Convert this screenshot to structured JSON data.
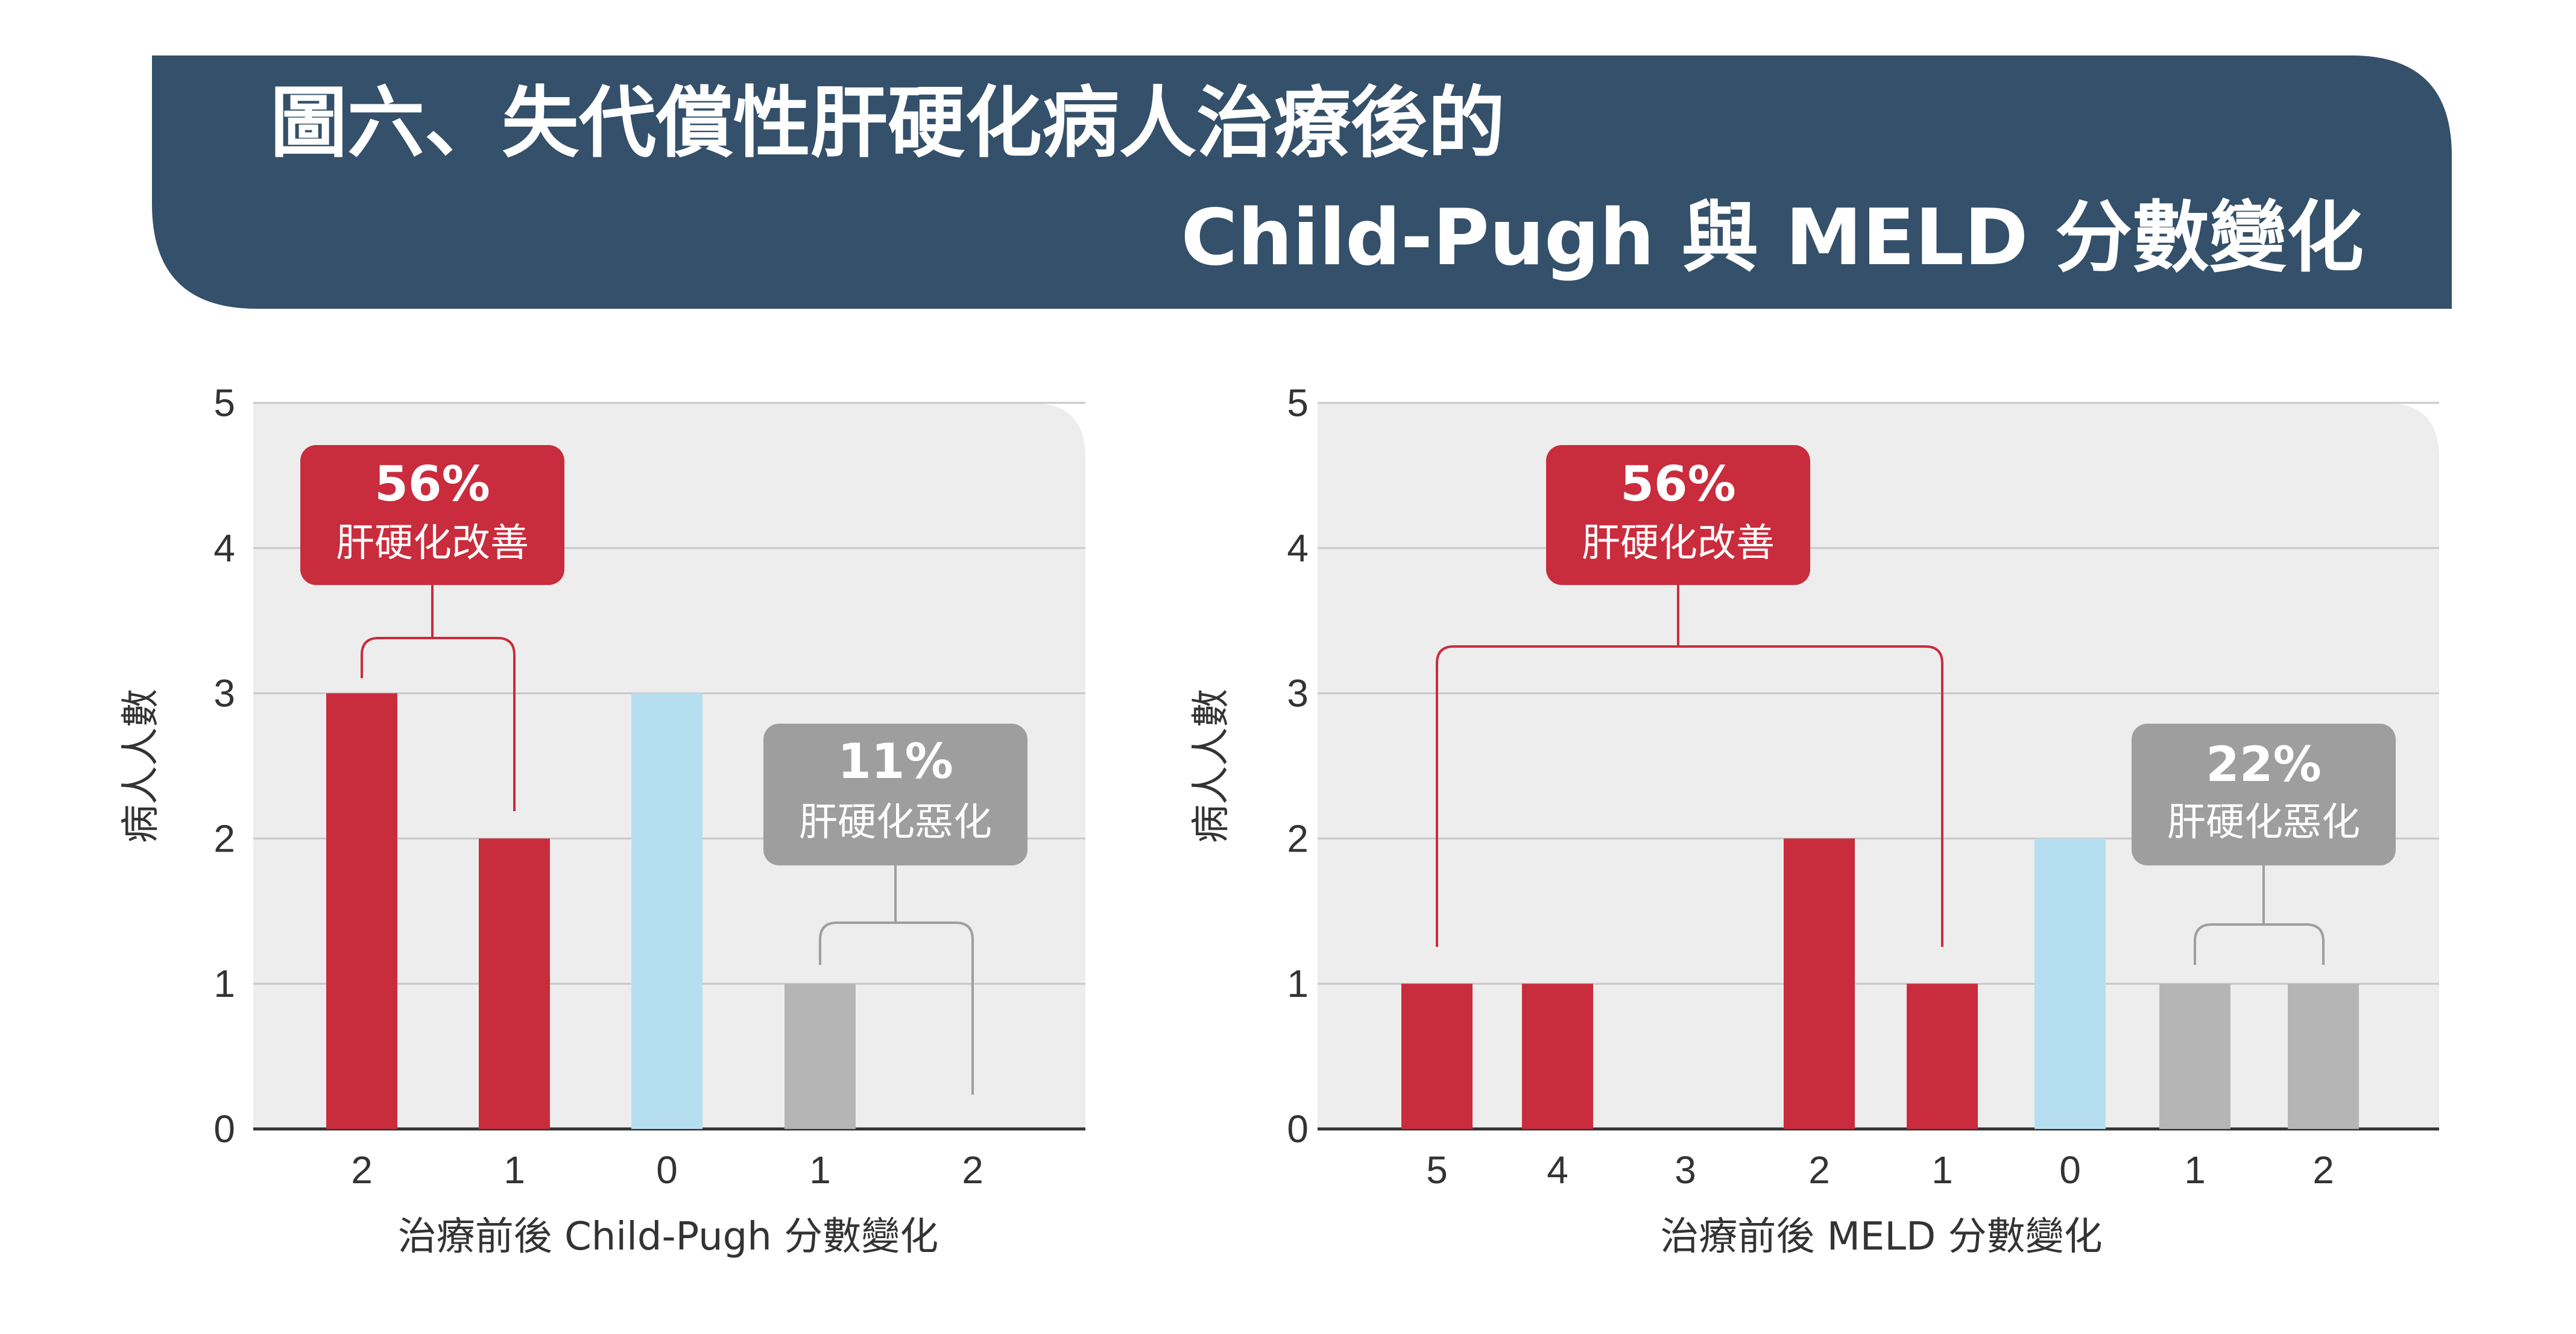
{
  "title": {
    "line1": "圖六、失代償性肝硬化病人治療後的",
    "line2": "Child-Pugh 與 MELD 分數變化"
  },
  "colors": {
    "header_bg": "#34506A",
    "improve": "#C92C3C",
    "unchanged": "#B5DFF1",
    "worsen": "#B5B5B5",
    "plot_bg": "#EDEDED",
    "improve_box": "#C92C3C",
    "worsen_box": "#9E9E9E"
  },
  "chart_data": [
    {
      "type": "bar",
      "categories": [
        "2",
        "1",
        "0",
        "1",
        "2"
      ],
      "values": [
        3,
        2,
        3,
        1,
        0
      ],
      "bar_groups": [
        "improve",
        "improve",
        "unchanged",
        "worsen",
        "worsen"
      ],
      "xlabel": "治療前後 Child-Pugh 分數變化",
      "ylabel": "病人人數",
      "ylim": [
        0,
        5
      ],
      "yticks": [
        "0",
        "1",
        "2",
        "3",
        "4",
        "5"
      ],
      "grid": true,
      "annotations": [
        {
          "group": "improve",
          "percent": "56%",
          "label": "肝硬化改善"
        },
        {
          "group": "worsen",
          "percent": "11%",
          "label": "肝硬化惡化"
        }
      ]
    },
    {
      "type": "bar",
      "categories": [
        "5",
        "4",
        "3",
        "2",
        "1",
        "0",
        "1",
        "2"
      ],
      "values": [
        1,
        1,
        0,
        2,
        1,
        2,
        1,
        1
      ],
      "bar_groups": [
        "improve",
        "improve",
        "improve",
        "improve",
        "improve",
        "unchanged",
        "worsen",
        "worsen"
      ],
      "xlabel": "治療前後 MELD 分數變化",
      "ylabel": "病人人數",
      "ylim": [
        0,
        5
      ],
      "yticks": [
        "0",
        "1",
        "2",
        "3",
        "4",
        "5"
      ],
      "grid": true,
      "annotations": [
        {
          "group": "improve",
          "percent": "56%",
          "label": "肝硬化改善"
        },
        {
          "group": "worsen",
          "percent": "22%",
          "label": "肝硬化惡化"
        }
      ]
    }
  ]
}
